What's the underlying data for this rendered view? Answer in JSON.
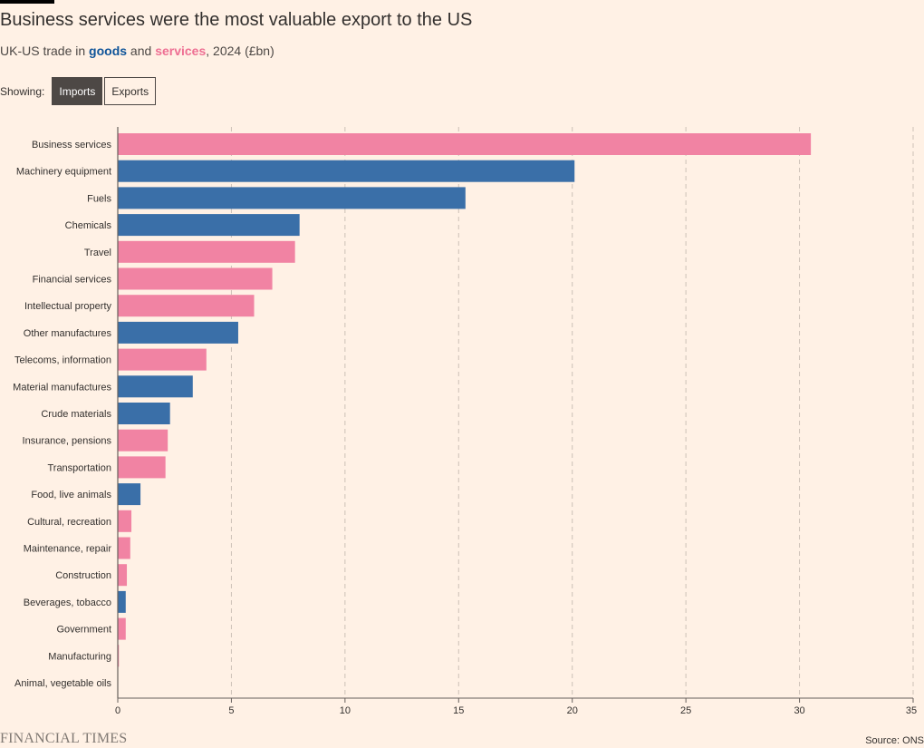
{
  "header": {
    "title": "Business services were the most valuable export to the US",
    "subtitle_prefix": "UK-US trade in ",
    "subtitle_goods": "goods",
    "subtitle_and": " and ",
    "subtitle_services": "services",
    "subtitle_suffix": ", 2024 (£bn)"
  },
  "controls": {
    "showing_label": "Showing:",
    "imports_label": "Imports",
    "exports_label": "Exports",
    "selected": "Imports"
  },
  "colors": {
    "goods": "#3A6FA8",
    "services": "#F183A3",
    "grid": "#CCC1B7",
    "axis": "#66605C"
  },
  "chart_data": {
    "type": "bar",
    "orientation": "horizontal",
    "categories": [
      "Business services",
      "Machinery equipment",
      "Fuels",
      "Chemicals",
      "Travel",
      "Financial services",
      "Intellectual property",
      "Other manufactures",
      "Telecoms, information",
      "Material manufactures",
      "Crude materials",
      "Insurance, pensions",
      "Transportation",
      "Food, live animals",
      "Cultural, recreation",
      "Maintenance, repair",
      "Construction",
      "Beverages, tobacco",
      "Government",
      "Manufacturing",
      "Animal, vegetable oils"
    ],
    "values": [
      30.5,
      20.1,
      15.3,
      8.0,
      7.8,
      6.8,
      6.0,
      5.3,
      3.9,
      3.3,
      2.3,
      2.2,
      2.1,
      1.0,
      0.6,
      0.55,
      0.4,
      0.35,
      0.35,
      0.05,
      0.0
    ],
    "kind": [
      "services",
      "goods",
      "goods",
      "goods",
      "services",
      "services",
      "services",
      "goods",
      "services",
      "goods",
      "goods",
      "services",
      "services",
      "goods",
      "services",
      "services",
      "services",
      "goods",
      "services",
      "services",
      "goods"
    ],
    "xlim": [
      0,
      35
    ],
    "xticks": [
      0,
      5,
      10,
      15,
      20,
      25,
      30,
      35
    ],
    "grid": true,
    "xlabel": "",
    "ylabel": ""
  },
  "footer": {
    "brand": "FINANCIAL TIMES",
    "source": "Source: ONS"
  }
}
